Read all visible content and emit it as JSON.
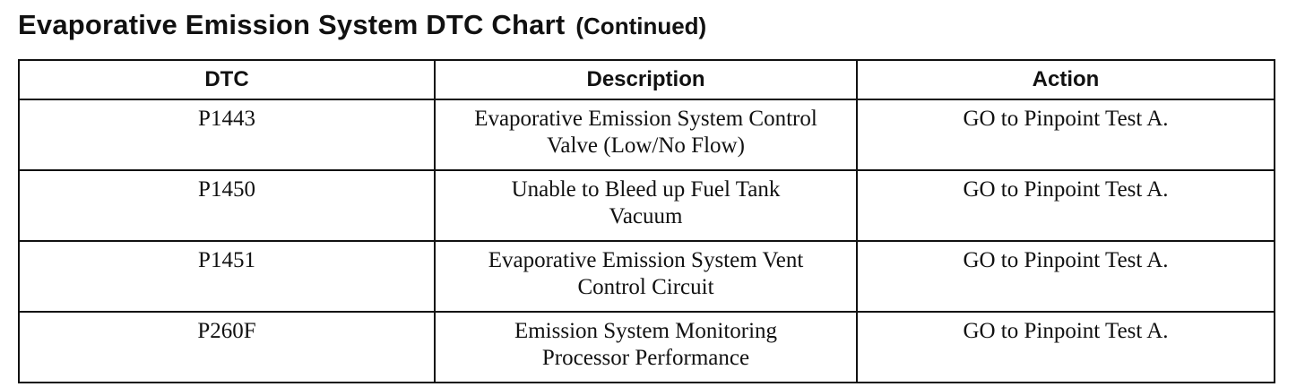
{
  "document": {
    "title": "Evaporative Emission System DTC Chart",
    "subtitle": "(Continued)"
  },
  "table": {
    "headers": [
      "DTC",
      "Description",
      "Action"
    ],
    "rows": [
      {
        "dtc": "P1443",
        "description": [
          "Evaporative Emission System Control",
          "Valve (Low/No Flow)"
        ],
        "action": "GO to Pinpoint Test A."
      },
      {
        "dtc": "P1450",
        "description": [
          "Unable to Bleed up Fuel Tank",
          "Vacuum"
        ],
        "action": "GO to Pinpoint Test A."
      },
      {
        "dtc": "P1451",
        "description": [
          "Evaporative Emission System Vent",
          "Control Circuit"
        ],
        "action": "GO to Pinpoint Test A."
      },
      {
        "dtc": "P260F",
        "description": [
          "Emission System Monitoring",
          "Processor Performance"
        ],
        "action": "GO to Pinpoint Test A."
      }
    ]
  }
}
